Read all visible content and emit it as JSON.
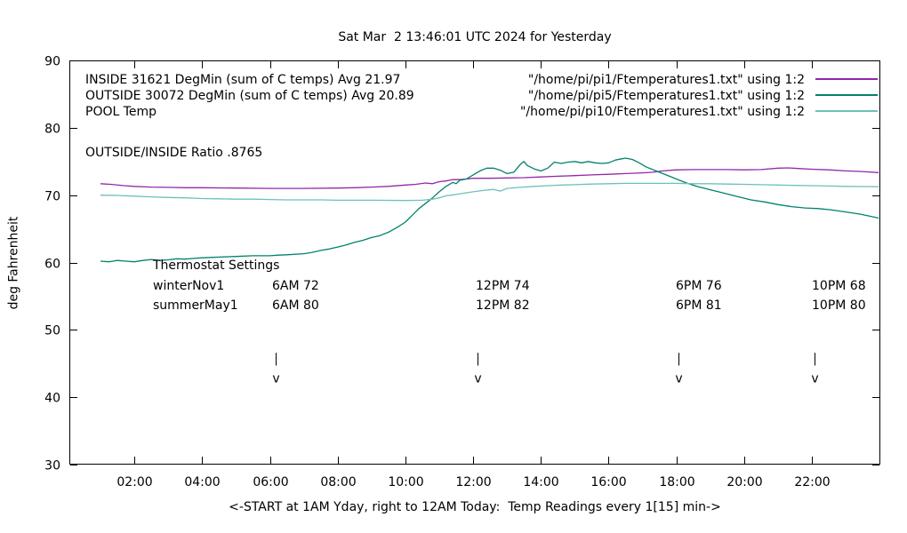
{
  "chart_data": {
    "type": "line",
    "title": "Sat Mar  2 13:46:01 UTC 2024 for Yesterday",
    "xlabel": "<-START at 1AM Yday, right to 12AM Today:  Temp Readings every 1[15] min->",
    "ylabel": "deg Fahrenheit",
    "x_unit": "hour of day (1 = 1AM yesterday, 24 = 12AM today)",
    "xlim": [
      0.08,
      24.02
    ],
    "ylim": [
      30,
      90
    ],
    "grid": false,
    "legend_position": "top-inside, labels left column, file names right column",
    "yticks": [
      30,
      40,
      50,
      60,
      70,
      80,
      90
    ],
    "xticks": [
      {
        "value": 2,
        "label": "02:00"
      },
      {
        "value": 4,
        "label": "04:00"
      },
      {
        "value": 6,
        "label": "06:00"
      },
      {
        "value": 8,
        "label": "08:00"
      },
      {
        "value": 10,
        "label": "10:00"
      },
      {
        "value": 12,
        "label": "12:00"
      },
      {
        "value": 14,
        "label": "14:00"
      },
      {
        "value": 16,
        "label": "16:00"
      },
      {
        "value": 18,
        "label": "18:00"
      },
      {
        "value": 20,
        "label": "20:00"
      },
      {
        "value": 22,
        "label": "22:00"
      }
    ],
    "series": [
      {
        "name": "INSIDE",
        "label": "INSIDE 31621 DegMin (sum of C temps) Avg 21.97",
        "file_label": "\"/home/pi/pi1/Ftemperatures1.txt\" using 1:2",
        "color": "#9128a8",
        "points": [
          [
            1.0,
            71.7
          ],
          [
            1.3,
            71.6
          ],
          [
            1.7,
            71.4
          ],
          [
            2.0,
            71.3
          ],
          [
            2.5,
            71.2
          ],
          [
            3.0,
            71.15
          ],
          [
            3.5,
            71.1
          ],
          [
            4.0,
            71.1
          ],
          [
            5.0,
            71.05
          ],
          [
            6.0,
            71.0
          ],
          [
            7.0,
            71.0
          ],
          [
            8.0,
            71.05
          ],
          [
            8.5,
            71.1
          ],
          [
            9.0,
            71.2
          ],
          [
            9.5,
            71.3
          ],
          [
            10.0,
            71.5
          ],
          [
            10.3,
            71.6
          ],
          [
            10.6,
            71.8
          ],
          [
            10.8,
            71.7
          ],
          [
            11.0,
            72.0
          ],
          [
            11.2,
            72.1
          ],
          [
            11.4,
            72.3
          ],
          [
            11.6,
            72.3
          ],
          [
            11.8,
            72.4
          ],
          [
            12.0,
            72.5
          ],
          [
            12.5,
            72.5
          ],
          [
            13.0,
            72.55
          ],
          [
            13.5,
            72.6
          ],
          [
            14.0,
            72.7
          ],
          [
            14.5,
            72.8
          ],
          [
            15.0,
            72.9
          ],
          [
            15.5,
            73.0
          ],
          [
            16.0,
            73.1
          ],
          [
            16.5,
            73.2
          ],
          [
            17.0,
            73.3
          ],
          [
            17.3,
            73.4
          ],
          [
            17.6,
            73.6
          ],
          [
            18.0,
            73.75
          ],
          [
            18.5,
            73.8
          ],
          [
            19.0,
            73.8
          ],
          [
            19.5,
            73.8
          ],
          [
            20.0,
            73.75
          ],
          [
            20.5,
            73.8
          ],
          [
            21.0,
            74.0
          ],
          [
            21.3,
            74.05
          ],
          [
            21.6,
            73.95
          ],
          [
            22.0,
            73.85
          ],
          [
            22.5,
            73.75
          ],
          [
            23.0,
            73.6
          ],
          [
            23.5,
            73.5
          ],
          [
            23.97,
            73.35
          ]
        ]
      },
      {
        "name": "OUTSIDE",
        "label": "OUTSIDE 30072 DegMin (sum of C temps) Avg 20.89",
        "file_label": "\"/home/pi/pi5/Ftemperatures1.txt\" using 1:2",
        "color": "#00826b",
        "points": [
          [
            1.0,
            60.2
          ],
          [
            1.25,
            60.1
          ],
          [
            1.5,
            60.3
          ],
          [
            1.75,
            60.2
          ],
          [
            2.0,
            60.1
          ],
          [
            2.25,
            60.3
          ],
          [
            2.5,
            60.45
          ],
          [
            2.75,
            60.3
          ],
          [
            3.0,
            60.4
          ],
          [
            3.25,
            60.55
          ],
          [
            3.5,
            60.5
          ],
          [
            3.75,
            60.6
          ],
          [
            4.0,
            60.7
          ],
          [
            4.25,
            60.75
          ],
          [
            4.5,
            60.8
          ],
          [
            5.0,
            60.9
          ],
          [
            5.5,
            61.0
          ],
          [
            6.0,
            61.0
          ],
          [
            6.25,
            61.1
          ],
          [
            6.5,
            61.15
          ],
          [
            7.0,
            61.3
          ],
          [
            7.25,
            61.5
          ],
          [
            7.5,
            61.8
          ],
          [
            7.75,
            62.0
          ],
          [
            8.0,
            62.3
          ],
          [
            8.25,
            62.6
          ],
          [
            8.5,
            63.0
          ],
          [
            8.75,
            63.3
          ],
          [
            9.0,
            63.7
          ],
          [
            9.25,
            64.0
          ],
          [
            9.5,
            64.5
          ],
          [
            9.75,
            65.2
          ],
          [
            10.0,
            66.0
          ],
          [
            10.2,
            67.0
          ],
          [
            10.4,
            68.0
          ],
          [
            10.6,
            68.8
          ],
          [
            10.8,
            69.6
          ],
          [
            11.0,
            70.5
          ],
          [
            11.2,
            71.3
          ],
          [
            11.4,
            71.9
          ],
          [
            11.5,
            71.7
          ],
          [
            11.6,
            72.2
          ],
          [
            11.8,
            72.4
          ],
          [
            12.0,
            73.0
          ],
          [
            12.2,
            73.6
          ],
          [
            12.4,
            74.0
          ],
          [
            12.6,
            74.0
          ],
          [
            12.8,
            73.7
          ],
          [
            13.0,
            73.2
          ],
          [
            13.2,
            73.4
          ],
          [
            13.4,
            74.6
          ],
          [
            13.5,
            75.0
          ],
          [
            13.6,
            74.4
          ],
          [
            13.8,
            73.9
          ],
          [
            14.0,
            73.6
          ],
          [
            14.2,
            74.0
          ],
          [
            14.4,
            74.9
          ],
          [
            14.6,
            74.7
          ],
          [
            14.8,
            74.9
          ],
          [
            15.0,
            75.0
          ],
          [
            15.2,
            74.8
          ],
          [
            15.4,
            75.0
          ],
          [
            15.6,
            74.8
          ],
          [
            15.8,
            74.7
          ],
          [
            16.0,
            74.8
          ],
          [
            16.2,
            75.2
          ],
          [
            16.4,
            75.4
          ],
          [
            16.5,
            75.5
          ],
          [
            16.7,
            75.3
          ],
          [
            16.9,
            74.8
          ],
          [
            17.1,
            74.2
          ],
          [
            17.4,
            73.6
          ],
          [
            17.7,
            73.0
          ],
          [
            18.0,
            72.4
          ],
          [
            18.3,
            71.8
          ],
          [
            18.6,
            71.3
          ],
          [
            19.0,
            70.8
          ],
          [
            19.4,
            70.3
          ],
          [
            19.8,
            69.8
          ],
          [
            20.2,
            69.3
          ],
          [
            20.6,
            69.0
          ],
          [
            21.0,
            68.6
          ],
          [
            21.4,
            68.3
          ],
          [
            21.8,
            68.1
          ],
          [
            22.2,
            68.0
          ],
          [
            22.6,
            67.8
          ],
          [
            23.0,
            67.5
          ],
          [
            23.4,
            67.2
          ],
          [
            23.7,
            66.9
          ],
          [
            23.97,
            66.6
          ]
        ]
      },
      {
        "name": "POOL",
        "label": "POOL Temp",
        "file_label": "\"/home/pi/pi10/Ftemperatures1.txt\" using 1:2",
        "color": "#6fc0b8",
        "points": [
          [
            1.0,
            70.0
          ],
          [
            1.5,
            69.95
          ],
          [
            2.0,
            69.85
          ],
          [
            2.5,
            69.75
          ],
          [
            3.0,
            69.65
          ],
          [
            3.5,
            69.6
          ],
          [
            4.0,
            69.5
          ],
          [
            4.5,
            69.45
          ],
          [
            5.0,
            69.4
          ],
          [
            5.5,
            69.4
          ],
          [
            6.0,
            69.35
          ],
          [
            6.5,
            69.3
          ],
          [
            7.0,
            69.3
          ],
          [
            7.5,
            69.3
          ],
          [
            8.0,
            69.25
          ],
          [
            9.0,
            69.25
          ],
          [
            10.0,
            69.2
          ],
          [
            10.5,
            69.25
          ],
          [
            10.8,
            69.4
          ],
          [
            11.0,
            69.6
          ],
          [
            11.2,
            69.9
          ],
          [
            11.5,
            70.1
          ],
          [
            11.8,
            70.35
          ],
          [
            12.0,
            70.5
          ],
          [
            12.3,
            70.7
          ],
          [
            12.6,
            70.85
          ],
          [
            12.8,
            70.6
          ],
          [
            13.0,
            71.0
          ],
          [
            13.4,
            71.15
          ],
          [
            13.8,
            71.3
          ],
          [
            14.2,
            71.4
          ],
          [
            14.6,
            71.5
          ],
          [
            15.0,
            71.55
          ],
          [
            15.5,
            71.65
          ],
          [
            16.0,
            71.7
          ],
          [
            16.5,
            71.75
          ],
          [
            17.0,
            71.75
          ],
          [
            17.5,
            71.75
          ],
          [
            18.0,
            71.75
          ],
          [
            18.5,
            71.7
          ],
          [
            19.0,
            71.7
          ],
          [
            19.5,
            71.65
          ],
          [
            20.0,
            71.6
          ],
          [
            20.5,
            71.55
          ],
          [
            21.0,
            71.5
          ],
          [
            21.5,
            71.45
          ],
          [
            22.0,
            71.4
          ],
          [
            22.5,
            71.35
          ],
          [
            23.0,
            71.3
          ],
          [
            23.5,
            71.28
          ],
          [
            23.97,
            71.25
          ]
        ]
      }
    ],
    "annotations": {
      "ratio": "OUTSIDE/INSIDE Ratio .8765",
      "thermostat": {
        "heading": "Thermostat Settings",
        "rows": [
          {
            "name": "winterNov1",
            "settings": [
              "6AM 72",
              "12PM 74",
              "6PM 76",
              "10PM 68"
            ]
          },
          {
            "name": "summerMay1",
            "settings": [
              "6AM 80",
              "12PM 82",
              "6PM 81",
              "10PM 80"
            ]
          }
        ]
      },
      "time_markers": {
        "hours": [
          6.17,
          12.12,
          18.05,
          22.08
        ],
        "glyph": "v",
        "line_f_top": 46.6,
        "line_f_bottom": 44.7,
        "v_baseline_f": 42.2
      }
    }
  }
}
